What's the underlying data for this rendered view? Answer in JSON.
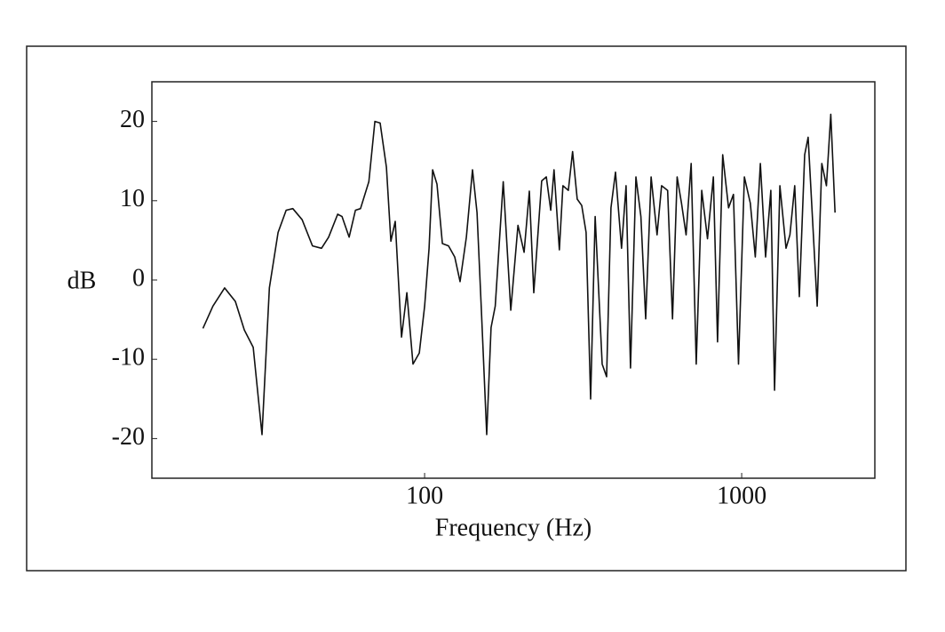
{
  "chart_data": {
    "type": "line",
    "xlabel": "Frequency (Hz)",
    "ylabel": "dB",
    "xscale": "log",
    "color": "#111111",
    "xlim": [
      13.8,
      2630
    ],
    "ylim": [
      -25,
      25
    ],
    "xticks": [
      100,
      1000
    ],
    "yticks": [
      20,
      10,
      0,
      -10,
      -20
    ],
    "grid": false,
    "x": [
      20,
      21.5,
      23.4,
      25.3,
      27,
      28.8,
      30.7,
      32.4,
      34.5,
      36.6,
      38.4,
      41.1,
      44.3,
      47.3,
      49.8,
      53.2,
      54.9,
      57.8,
      60.5,
      62.8,
      66.7,
      69.7,
      72.4,
      75.8,
      78.3,
      80.8,
      84.6,
      87.9,
      91.9,
      96.2,
      100,
      103.3,
      106,
      109.4,
      113.8,
      119,
      124.5,
      129.4,
      135.4,
      141.6,
      146.3,
      151,
      157,
      162,
      167,
      177,
      187,
      197,
      206,
      214,
      221,
      234,
      242,
      250,
      256,
      266,
      273,
      284,
      293,
      303,
      313,
      323,
      334,
      345,
      363,
      375,
      387,
      400,
      418,
      432,
      446,
      464,
      481,
      498,
      518,
      541,
      559,
      584,
      605,
      626,
      646,
      668,
      693,
      719,
      748,
      780,
      814,
      839,
      871,
      909,
      942,
      977,
      1020,
      1065,
      1104,
      1145,
      1190,
      1236,
      1270,
      1320,
      1380,
      1420,
      1470,
      1520,
      1580,
      1620,
      1680,
      1730,
      1790,
      1850,
      1910,
      1970
    ],
    "values": [
      -6.1,
      -3.3,
      -1,
      -2.7,
      -6.3,
      -8.5,
      -19.5,
      -1,
      6,
      8.8,
      9,
      7.6,
      4.3,
      4,
      5.4,
      8.3,
      8,
      5.4,
      8.8,
      9,
      12.4,
      20,
      19.8,
      14.2,
      4.9,
      7.4,
      -7.2,
      -1.6,
      -10.6,
      -9.2,
      -3.3,
      4,
      13.9,
      12.1,
      4.6,
      4.3,
      2.9,
      -0.2,
      5.4,
      13.9,
      8.5,
      -3.8,
      -19.5,
      -6,
      -3.3,
      12.4,
      -3.8,
      6.9,
      3.5,
      11.2,
      -1.6,
      12.5,
      13,
      8.8,
      13.9,
      3.8,
      11.9,
      11.3,
      16.2,
      10.2,
      9.4,
      6,
      -15,
      8,
      -10.6,
      -12.2,
      9.1,
      13.6,
      4,
      11.9,
      -11.1,
      13,
      8,
      -4.9,
      13,
      5.7,
      11.9,
      11.3,
      -4.9,
      13,
      9.7,
      5.7,
      14.7,
      -10.6,
      11.3,
      5.2,
      13,
      -7.8,
      15.8,
      9.1,
      10.8,
      -10.6,
      13,
      9.7,
      2.9,
      14.7,
      2.9,
      11.3,
      -13.9,
      11.9,
      4,
      5.7,
      11.9,
      -2.1,
      15.8,
      18,
      6.3,
      -3.3,
      14.7,
      11.9,
      20.9,
      8.5
    ]
  }
}
